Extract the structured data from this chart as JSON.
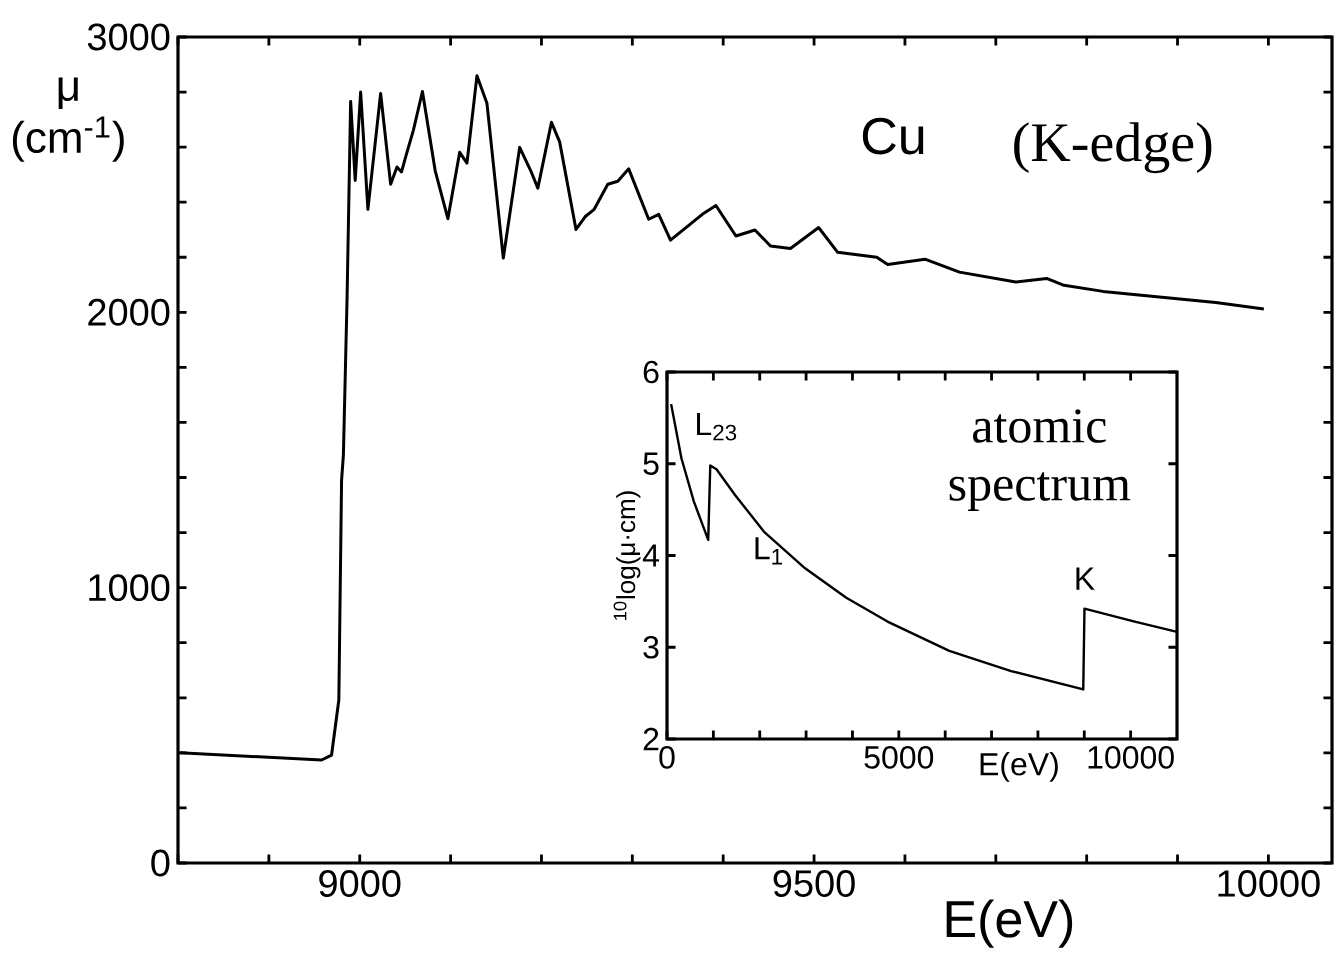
{
  "chart_data": [
    {
      "type": "line",
      "xlabel": "E(eV)",
      "ylabel": "μ (cm$^{-1}$)",
      "annotations": [
        "Cu",
        "(K-edge)"
      ],
      "xlim": [
        8800,
        10070
      ],
      "ylim": [
        0,
        3000
      ],
      "xticks": [
        {
          "value": 8800,
          "label": null
        },
        {
          "value": 8900,
          "label": null
        },
        9000,
        {
          "value": 9100,
          "label": null
        },
        {
          "value": 9200,
          "label": null
        },
        {
          "value": 9300,
          "label": null
        },
        {
          "value": 9400,
          "label": null
        },
        9500,
        {
          "value": 9600,
          "label": null
        },
        {
          "value": 9700,
          "label": null
        },
        {
          "value": 9800,
          "label": null
        },
        {
          "value": 9900,
          "label": null
        },
        10000
      ],
      "yticks": [
        0,
        {
          "value": 200,
          "label": null
        },
        {
          "value": 400,
          "label": null
        },
        {
          "value": 600,
          "label": null
        },
        {
          "value": 800,
          "label": null
        },
        1000,
        {
          "value": 1200,
          "label": null
        },
        {
          "value": 1400,
          "label": null
        },
        {
          "value": 1600,
          "label": null
        },
        {
          "value": 1800,
          "label": null
        },
        2000,
        {
          "value": 2200,
          "label": null
        },
        {
          "value": 2400,
          "label": null
        },
        {
          "value": 2600,
          "label": null
        },
        {
          "value": 2800,
          "label": null
        },
        3000
      ],
      "series": [
        {
          "color": "#000000",
          "x": [
            8802,
            8958,
            8969,
            8977,
            8980,
            8982,
            8986,
            8990,
            8995,
            9001,
            9009,
            9023,
            9034,
            9041,
            9046,
            9051,
            9059,
            9069,
            9083,
            9097,
            9110,
            9118,
            9129,
            9140,
            9158,
            9176,
            9189,
            9196,
            9211,
            9220,
            9238,
            9248,
            9258,
            9273,
            9284,
            9296,
            9318,
            9329,
            9342,
            9358,
            9377,
            9392,
            9414,
            9435,
            9452,
            9474,
            9505,
            9526,
            9569,
            9581,
            9622,
            9660,
            9722,
            9756,
            9775,
            9818,
            9894,
            9942,
            9995
          ],
          "values": [
            400,
            374,
            392,
            592,
            1390,
            1481,
            2044,
            2766,
            2479,
            2800,
            2374,
            2795,
            2465,
            2528,
            2510,
            2570,
            2661,
            2802,
            2515,
            2340,
            2581,
            2542,
            2859,
            2759,
            2197,
            2599,
            2508,
            2451,
            2690,
            2619,
            2301,
            2347,
            2374,
            2465,
            2476,
            2521,
            2338,
            2356,
            2262,
            2305,
            2356,
            2388,
            2277,
            2299,
            2241,
            2232,
            2308,
            2218,
            2200,
            2174,
            2193,
            2146,
            2110,
            2123,
            2098,
            2076,
            2051,
            2036,
            2012
          ]
        }
      ]
    },
    {
      "type": "line",
      "xlabel": "E(eV)",
      "ylabel": "$^{10}$log(μ·cm)",
      "annotations": [
        "atomic spectrum",
        {
          "text": "L$_{23}$",
          "x": 933,
          "y": 4.98
        },
        {
          "text": "L$_{1}$",
          "x": 1096,
          "y": 4.93
        },
        {
          "text": "K",
          "x": 9004,
          "y": 3.42
        }
      ],
      "xlim": [
        0,
        11000
      ],
      "ylim": [
        2,
        6
      ],
      "xticks": [
        0,
        {
          "value": 1000,
          "label": null
        },
        {
          "value": 2000,
          "label": null
        },
        {
          "value": 3000,
          "label": null
        },
        {
          "value": 4000,
          "label": null
        },
        5000,
        {
          "value": 6000,
          "label": null
        },
        {
          "value": 7000,
          "label": null
        },
        {
          "value": 8000,
          "label": null
        },
        {
          "value": 9000,
          "label": null
        },
        10000
      ],
      "yticks": [
        2,
        3,
        4,
        5,
        6
      ],
      "series": [
        {
          "color": "#000000",
          "x": [
            89,
            311,
            578,
            889,
            933,
            1067,
            1467,
            2089,
            2978,
            3867,
            4756,
            6089,
            7422,
            8978,
            9004,
            10089,
            10978
          ],
          "values": [
            5.65,
            5.06,
            4.59,
            4.17,
            4.98,
            4.94,
            4.66,
            4.26,
            3.86,
            3.54,
            3.28,
            2.96,
            2.74,
            2.54,
            3.42,
            3.28,
            3.17
          ]
        }
      ]
    }
  ]
}
